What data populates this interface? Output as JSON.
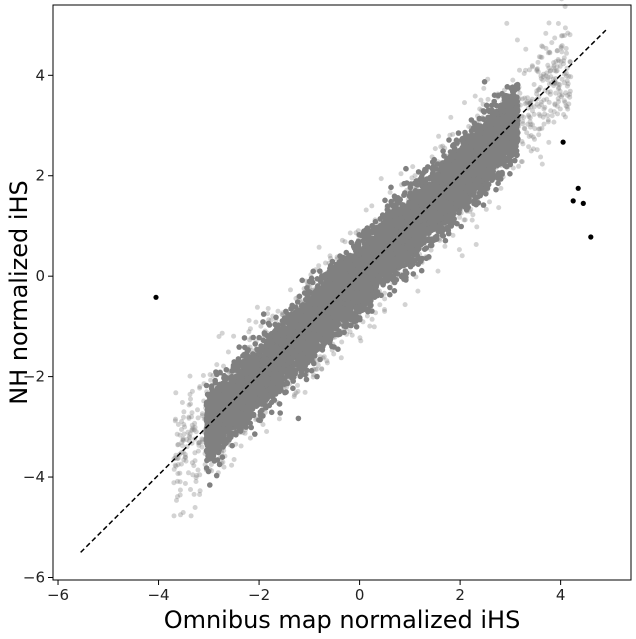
{
  "chart_data": {
    "type": "scatter",
    "title": "",
    "xlabel": "Omnibus map normalized iHS",
    "ylabel": "NH normalized iHS",
    "xlim": [
      -6.1,
      5.4
    ],
    "ylim": [
      -6.05,
      5.4
    ],
    "x_ticks": [
      -6,
      -4,
      -2,
      0,
      2,
      4
    ],
    "y_ticks": [
      -6,
      -4,
      -2,
      0,
      2,
      4
    ],
    "x_tick_labels": [
      "−6",
      "−4",
      "−2",
      "0",
      "2",
      "4"
    ],
    "y_tick_labels": [
      "−6",
      "−4",
      "−2",
      "0",
      "2",
      "4"
    ],
    "grid": false,
    "legend": "none",
    "reference_line": {
      "style": "dashed",
      "color": "#000000",
      "from": [
        -5.55,
        -5.5
      ],
      "to": [
        4.9,
        4.9
      ]
    },
    "bulk_points": {
      "description": "dense cloud of gray points along y ≈ x",
      "color": "#808080",
      "x_range": [
        -3.3,
        3.4
      ],
      "approx_slope": 1.0
    },
    "outliers": [
      {
        "x": -4.05,
        "y": -0.42
      },
      {
        "x": 4.05,
        "y": 2.67
      },
      {
        "x": 4.35,
        "y": 1.75
      },
      {
        "x": 4.25,
        "y": 1.5
      },
      {
        "x": 4.45,
        "y": 1.45
      },
      {
        "x": 4.6,
        "y": 0.78
      }
    ]
  }
}
